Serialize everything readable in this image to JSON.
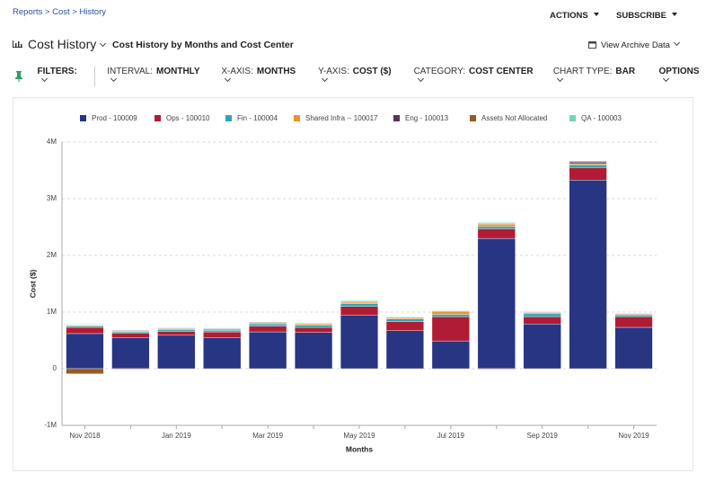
{
  "header": {
    "breadcrumb": "Reports > Cost > History",
    "actions": "ACTIONS",
    "subscribe": "SUBSCRIBE",
    "title": "Cost History",
    "subtitle": "Cost History by Months and Cost Center",
    "archive": "View Archive Data"
  },
  "filters": {
    "label": "FILTERS:",
    "items": [
      {
        "label": "INTERVAL:",
        "value": "MONTHLY"
      },
      {
        "label": "X-AXIS:",
        "value": "MONTHS"
      },
      {
        "label": "Y-AXIS:",
        "value": "COST ($)"
      },
      {
        "label": "CATEGORY:",
        "value": "COST CENTER"
      },
      {
        "label": "CHART TYPE:",
        "value": "BAR"
      }
    ],
    "options": "OPTIONS"
  },
  "chart_data": {
    "type": "bar",
    "stacked": true,
    "grid": true,
    "legend": "top",
    "x_label": "Months",
    "y_label": "Cost ($)",
    "categories": [
      "Nov 2018",
      null,
      "Jan 2019",
      null,
      "Mar 2019",
      null,
      "May 2019",
      null,
      "Jul 2019",
      null,
      "Sep 2019",
      null,
      "Nov 2019"
    ],
    "ylim": [
      -1000000,
      4000000
    ],
    "yticks": [
      {
        "value": -1000000,
        "label": "-1M"
      },
      0,
      {
        "value": 1000000,
        "label": "1M"
      },
      {
        "value": 2000000,
        "label": "2M"
      },
      {
        "value": 3000000,
        "label": "3M"
      },
      {
        "value": 4000000,
        "label": "4M"
      }
    ],
    "series": [
      {
        "name": "Prod - 100009",
        "color": "#283583",
        "values": [
          620000,
          550000,
          590000,
          550000,
          650000,
          640000,
          940000,
          670000,
          490000,
          2300000,
          790000,
          3330000,
          730000
        ]
      },
      {
        "name": "Ops - 100010",
        "color": "#b01c35",
        "values": [
          110000,
          80000,
          70000,
          100000,
          100000,
          90000,
          160000,
          160000,
          430000,
          170000,
          130000,
          220000,
          190000
        ]
      },
      {
        "name": "Fin - 100004",
        "color": "#2aa8b0",
        "values": [
          20000,
          20000,
          25000,
          30000,
          40000,
          40000,
          50000,
          50000,
          40000,
          40000,
          50000,
          50000,
          30000
        ]
      },
      {
        "name": "Shared Infra -- 100017",
        "color": "#f0922b",
        "values": [
          15000,
          15000,
          20000,
          20000,
          20000,
          20000,
          25000,
          20000,
          50000,
          40000,
          20000,
          20000,
          10000
        ]
      },
      {
        "name": "Eng - 100013",
        "color": "#5c3058",
        "values": [
          10000,
          10000,
          10000,
          10000,
          10000,
          10000,
          10000,
          10000,
          10000,
          10000,
          10000,
          30000,
          10000
        ]
      },
      {
        "name": "Assets Not Allocated",
        "color": "#9a5a1e",
        "values": [
          -90000,
          -10000,
          0,
          0,
          0,
          0,
          0,
          0,
          0,
          -10000,
          0,
          0,
          0
        ]
      },
      {
        "name": "QA - 100003",
        "color": "#6fd6bb",
        "values": [
          10000,
          10000,
          10000,
          10000,
          10000,
          10000,
          15000,
          10000,
          10000,
          20000,
          10000,
          20000,
          10000
        ]
      }
    ]
  }
}
